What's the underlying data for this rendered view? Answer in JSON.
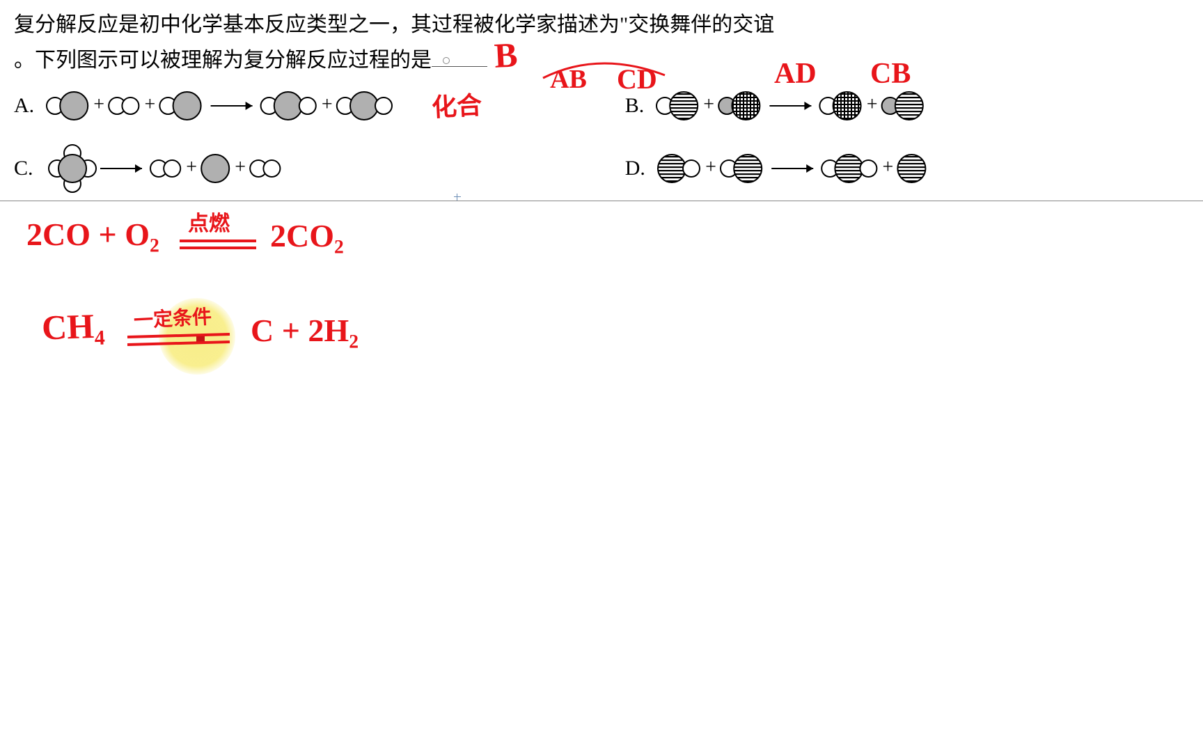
{
  "colors": {
    "ink": "#e8151a",
    "text": "#000000",
    "grayfill": "#b0b0b0",
    "stroke": "#000000",
    "highlight": "#f8ed83",
    "border": "#888888"
  },
  "question": {
    "line1": "复分解反应是初中化学基本反应类型之一，其过程被化学家描述为\"交换舞伴的交谊",
    "line2_pre": "。下列图示可以被理解为复分解反应过程的是",
    "answer_written": "B"
  },
  "options": {
    "A": {
      "label": "A."
    },
    "B": {
      "label": "B."
    },
    "C": {
      "label": "C."
    },
    "D": {
      "label": "D."
    }
  },
  "handwriting": {
    "labels_above_B": {
      "AB": "AB",
      "CD": "CD",
      "AD": "AD",
      "CB": "CB"
    },
    "note_after_A": "化合",
    "eq1_left": "2CO + O₂",
    "eq1_cond": "点燃",
    "eq1_right": "2CO₂",
    "eq2_left": "CH₄",
    "eq2_cond": "一定条件",
    "eq2_right": "C + 2H₂"
  },
  "diagrams": {
    "circle_small_r": 12,
    "circle_large_r": 20,
    "fills": {
      "empty": "none",
      "gray": "#b0b0b0",
      "hstripe": "hstripe",
      "grid": "grid"
    },
    "A": {
      "reactants": [
        [
          {
            "r": "s",
            "f": "empty"
          },
          {
            "r": "l",
            "f": "gray"
          }
        ],
        [
          {
            "r": "s",
            "f": "empty"
          },
          {
            "r": "s",
            "f": "empty"
          }
        ],
        [
          {
            "r": "s",
            "f": "empty"
          },
          {
            "r": "l",
            "f": "gray"
          }
        ]
      ],
      "products": [
        [
          {
            "r": "s",
            "f": "empty"
          },
          {
            "r": "l",
            "f": "gray"
          },
          {
            "r": "s",
            "f": "empty"
          }
        ],
        [
          {
            "r": "s",
            "f": "empty"
          },
          {
            "r": "l",
            "f": "gray"
          },
          {
            "r": "s",
            "f": "empty"
          }
        ]
      ]
    },
    "B": {
      "reactants": [
        [
          {
            "r": "s",
            "f": "empty"
          },
          {
            "r": "l",
            "f": "hstripe"
          }
        ],
        [
          {
            "r": "s",
            "f": "gray"
          },
          {
            "r": "l",
            "f": "grid"
          }
        ]
      ],
      "products": [
        [
          {
            "r": "s",
            "f": "empty"
          },
          {
            "r": "l",
            "f": "grid"
          }
        ],
        [
          {
            "r": "s",
            "f": "gray"
          },
          {
            "r": "l",
            "f": "hstripe"
          }
        ]
      ]
    },
    "C": {
      "reactant_shape": "tetra",
      "products": [
        [
          {
            "r": "s",
            "f": "empty"
          },
          {
            "r": "s",
            "f": "empty"
          }
        ],
        [
          {
            "r": "l",
            "f": "gray"
          }
        ],
        [
          {
            "r": "s",
            "f": "empty"
          },
          {
            "r": "s",
            "f": "empty"
          }
        ]
      ]
    },
    "D": {
      "reactants": [
        [
          {
            "r": "l",
            "f": "hstripe"
          },
          {
            "r": "s",
            "f": "empty"
          }
        ],
        [
          {
            "r": "s",
            "f": "empty"
          },
          {
            "r": "l",
            "f": "hstripe"
          }
        ]
      ],
      "products": [
        [
          {
            "r": "s",
            "f": "empty"
          },
          {
            "r": "l",
            "f": "hstripe"
          },
          {
            "r": "s",
            "f": "empty"
          }
        ],
        [
          {
            "r": "l",
            "f": "hstripe"
          }
        ]
      ]
    }
  }
}
